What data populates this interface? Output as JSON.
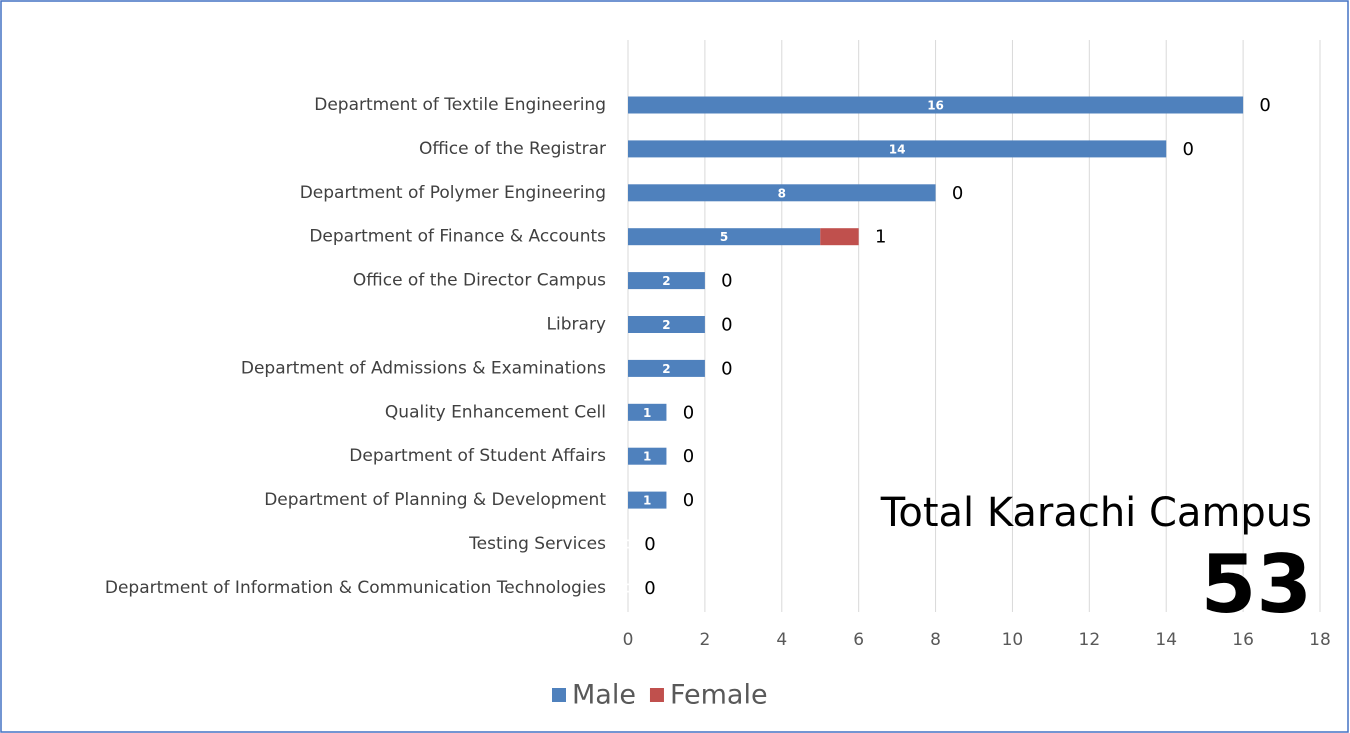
{
  "chart_data": {
    "type": "stacked_barh",
    "categories": [
      "Department of Textile Engineering",
      "Office of the Registrar",
      "Department of Polymer Engineering",
      "Department of Finance & Accounts",
      "Office of the Director Campus",
      "Library",
      "Department of Admissions & Examinations",
      "Quality Enhancement Cell",
      "Department of Student Affairs",
      "Department of Planning & Development",
      "Testing Services",
      "Department of Information & Communication Technologies"
    ],
    "series": [
      {
        "name": "Male",
        "color": "#4f81bd",
        "values": [
          16,
          14,
          8,
          5,
          2,
          2,
          2,
          1,
          1,
          1,
          0,
          0
        ]
      },
      {
        "name": "Female",
        "color": "#c0504d",
        "values": [
          0,
          0,
          0,
          1,
          0,
          0,
          0,
          0,
          0,
          0,
          0,
          0
        ]
      }
    ],
    "xlim": [
      0,
      18
    ],
    "xticks": [
      0,
      2,
      4,
      6,
      8,
      10,
      12,
      14,
      16,
      18
    ],
    "grid": true,
    "legend": "bottom",
    "annotations": [
      "Total Karachi Campus",
      "53"
    ]
  }
}
